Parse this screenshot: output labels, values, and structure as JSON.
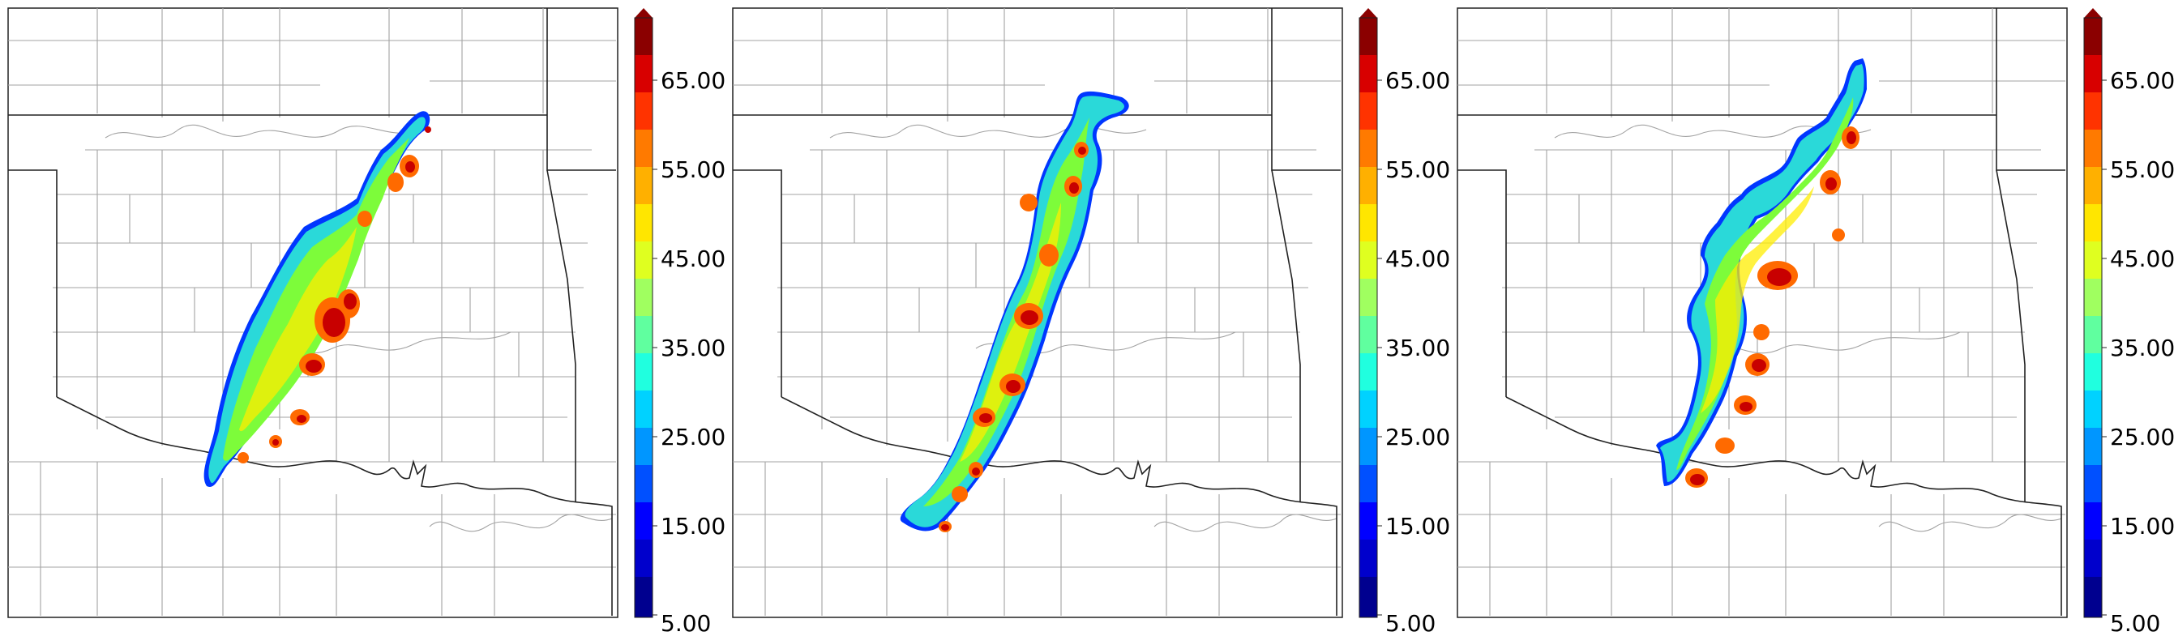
{
  "figure": {
    "panel_count": 3,
    "panels": [
      {
        "name": "panel-1",
        "band_orientation": "SW-NE"
      },
      {
        "name": "panel-2",
        "band_orientation": "SW-NE"
      },
      {
        "name": "panel-3",
        "band_orientation": "SW-NE"
      }
    ],
    "colorbar": {
      "min": 5,
      "max": 70,
      "step": 5,
      "extend": "max",
      "tick_labels": [
        "65.00",
        "55.00",
        "45.00",
        "35.00",
        "25.00",
        "15.00",
        "5.00"
      ],
      "colors": [
        "#00008f",
        "#0000cc",
        "#0000ff",
        "#0050ff",
        "#0096ff",
        "#00d2ff",
        "#20ffdf",
        "#60ff9f",
        "#a0ff60",
        "#dfff20",
        "#ffe600",
        "#ffb000",
        "#ff7a00",
        "#ff3300",
        "#d80000",
        "#8b0000"
      ]
    },
    "palette": {
      "outline": "#0037ff",
      "low": "#2ad9d9",
      "mid": "#7dfc3a",
      "high": "#ffee00",
      "peak_outer": "#ff6a00",
      "peak_inner": "#c80000",
      "border_state": "#000000",
      "border_county": "#9a9a9a"
    }
  }
}
